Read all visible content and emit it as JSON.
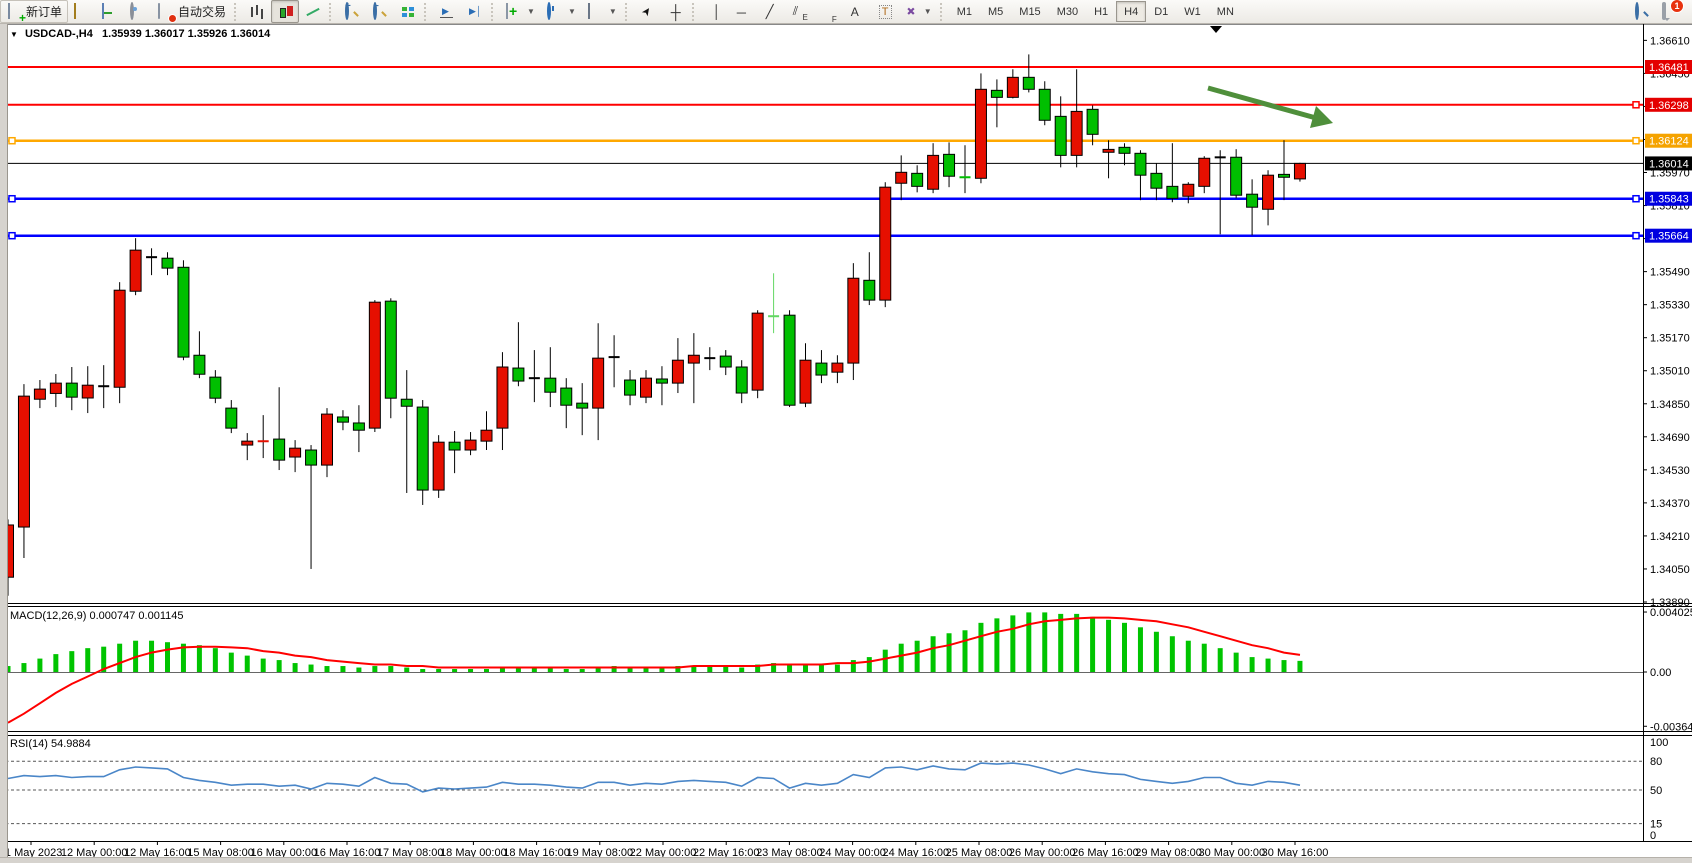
{
  "toolbar": {
    "new_order_label": "新订单",
    "autotrading_label": "自动交易",
    "timeframes": [
      "M1",
      "M5",
      "M15",
      "M30",
      "H1",
      "H4",
      "D1",
      "W1",
      "MN"
    ],
    "active_timeframe": "H4",
    "notification_count": "1",
    "icons": [
      "new-order-icon",
      "gold-icon",
      "charts-window-icon",
      "signals-icon",
      "autotrading-icon",
      "bar-chart-icon",
      "candlestick-icon",
      "line-chart-icon",
      "zoom-in-icon",
      "zoom-out-icon",
      "tile-windows-icon",
      "auto-scroll-icon",
      "chart-shift-icon",
      "add-indicator-icon",
      "periods-clock-icon",
      "templates-icon",
      "cursor-icon",
      "crosshair-icon",
      "vertical-line-icon",
      "horizontal-line-icon",
      "trendline-icon",
      "channel-icon",
      "fibonacci-icon",
      "text-icon",
      "text-label-icon",
      "arrows-icon",
      "search-icon",
      "chat-icon"
    ]
  },
  "chart": {
    "symbol_period": "USDCAD-,H4",
    "ohlc_text": "1.35939 1.36017 1.35926 1.36014",
    "current_price": "1.36014",
    "colors": {
      "candle_up": "#e60f00",
      "candle_down": "#00bf00",
      "candle_doji_lime": "#63d763",
      "candle_doji_black": "#111111",
      "line_red": "#ff0000",
      "line_orange": "#ffa800",
      "line_blue": "#0000ff",
      "price_line_black": "#000000",
      "macd_hist": "#00c400",
      "macd_signal": "#ff0000",
      "rsi_line": "#4a86c8",
      "arrow_green": "#4f8f3b"
    }
  },
  "price_axis": {
    "ticks": [
      "1.36610",
      "1.36450",
      "1.36290",
      "1.36130",
      "1.35970",
      "1.35810",
      "1.35650",
      "1.35490",
      "1.35330",
      "1.35170",
      "1.35010",
      "1.34850",
      "1.34690",
      "1.34530",
      "1.34370",
      "1.34210",
      "1.34050",
      "1.33890"
    ],
    "badges": [
      {
        "text": "1.36481",
        "price": 1.36481,
        "color": "#e40000"
      },
      {
        "text": "1.36298",
        "price": 1.36298,
        "color": "#e40000"
      },
      {
        "text": "1.36124",
        "price": 1.36124,
        "color": "#f5a300"
      },
      {
        "text": "1.36014",
        "price": 1.36014,
        "color": "#000000"
      },
      {
        "text": "1.35843",
        "price": 1.35843,
        "color": "#0000e0"
      },
      {
        "text": "1.35664",
        "price": 1.35664,
        "color": "#0000e0"
      }
    ]
  },
  "hlines": [
    {
      "name": "resistance-1",
      "price": 1.36481,
      "color": "#ff0000",
      "width": 2,
      "left_handle": false,
      "right_handle": false
    },
    {
      "name": "resistance-2",
      "price": 1.36298,
      "color": "#ff0000",
      "width": 2,
      "left_handle": false,
      "right_handle": true
    },
    {
      "name": "pivot-orange",
      "price": 1.36124,
      "color": "#ffa800",
      "width": 2.5,
      "left_handle": true,
      "right_handle": true
    },
    {
      "name": "current-price",
      "price": 1.36014,
      "color": "#000000",
      "width": 1,
      "left_handle": false,
      "right_handle": false
    },
    {
      "name": "support-1",
      "price": 1.35843,
      "color": "#0000ff",
      "width": 2.5,
      "left_handle": true,
      "right_handle": true
    },
    {
      "name": "support-2",
      "price": 1.35664,
      "color": "#0000ff",
      "width": 2.5,
      "left_handle": true,
      "right_handle": true
    }
  ],
  "time_axis": [
    "11 May 2023",
    "12 May 00:00",
    "12 May 16:00",
    "15 May 08:00",
    "16 May 00:00",
    "16 May 16:00",
    "17 May 08:00",
    "18 May 00:00",
    "18 May 16:00",
    "19 May 08:00",
    "22 May 00:00",
    "22 May 16:00",
    "23 May 08:00",
    "24 May 00:00",
    "24 May 16:00",
    "25 May 08:00",
    "26 May 00:00",
    "26 May 16:00",
    "29 May 08:00",
    "30 May 00:00",
    "30 May 16:00"
  ],
  "macd": {
    "label": "MACD(12,26,9)",
    "values_text": "0.000747 0.001145",
    "axis_max": "0.004025",
    "axis_zero": "0.00",
    "axis_min": "-0.003642"
  },
  "rsi": {
    "label": "RSI(14)",
    "value_text": "54.9884",
    "levels": [
      "100",
      "80",
      "50",
      "15",
      "0"
    ]
  },
  "chart_data": {
    "type": "candlestick",
    "title": "USDCAD- H4",
    "note": "colors: r=up(red, CN convention), g=down(green), k=black doji, l=lime doji; candle=[open,high,low,close,color]",
    "candles": [
      [
        1.3401,
        1.3429,
        1.3392,
        1.34263,
        "r"
      ],
      [
        1.34253,
        1.34945,
        1.34103,
        1.34887,
        "r"
      ],
      [
        1.34872,
        1.34965,
        1.34829,
        1.34921,
        "r"
      ],
      [
        1.349,
        1.34994,
        1.34834,
        1.3495,
        "r"
      ],
      [
        1.3495,
        1.35028,
        1.34819,
        1.34882,
        "g"
      ],
      [
        1.34878,
        1.35032,
        1.34805,
        1.3494,
        "r"
      ],
      [
        1.34933,
        1.35037,
        1.34829,
        1.34937,
        "k"
      ],
      [
        1.3493,
        1.35439,
        1.34853,
        1.354,
        "r"
      ],
      [
        1.35395,
        1.35652,
        1.35376,
        1.35594,
        "r"
      ],
      [
        1.35558,
        1.35603,
        1.35473,
        1.35562,
        "k"
      ],
      [
        1.35555,
        1.35584,
        1.35473,
        1.35507,
        "g"
      ],
      [
        1.35511,
        1.35545,
        1.35061,
        1.35076,
        "g"
      ],
      [
        1.35085,
        1.35201,
        1.34974,
        1.34993,
        "g"
      ],
      [
        1.34979,
        1.35013,
        1.34853,
        1.34877,
        "g"
      ],
      [
        1.34829,
        1.34868,
        1.34708,
        1.34732,
        "g"
      ],
      [
        1.3465,
        1.34708,
        1.34577,
        1.34669,
        "r"
      ],
      [
        1.34665,
        1.34795,
        1.34587,
        1.34672,
        "r"
      ],
      [
        1.34679,
        1.3493,
        1.34529,
        1.34577,
        "g"
      ],
      [
        1.34592,
        1.34674,
        1.34519,
        1.34635,
        "r"
      ],
      [
        1.34626,
        1.3465,
        1.3405,
        1.34553,
        "g"
      ],
      [
        1.34553,
        1.34829,
        1.34495,
        1.348,
        "r"
      ],
      [
        1.34786,
        1.34819,
        1.34722,
        1.34761,
        "g"
      ],
      [
        1.34757,
        1.34843,
        1.34616,
        1.34722,
        "g"
      ],
      [
        1.34732,
        1.35352,
        1.34713,
        1.35342,
        "r"
      ],
      [
        1.35347,
        1.35361,
        1.3478,
        1.34877,
        "g"
      ],
      [
        1.34872,
        1.35013,
        1.34418,
        1.34838,
        "g"
      ],
      [
        1.34834,
        1.34868,
        1.3436,
        1.34432,
        "g"
      ],
      [
        1.34432,
        1.34698,
        1.34394,
        1.34664,
        "r"
      ],
      [
        1.34664,
        1.34718,
        1.34514,
        1.34626,
        "g"
      ],
      [
        1.34626,
        1.34713,
        1.34601,
        1.34674,
        "r"
      ],
      [
        1.34669,
        1.34814,
        1.34626,
        1.34722,
        "r"
      ],
      [
        1.34732,
        1.351,
        1.34626,
        1.35028,
        "r"
      ],
      [
        1.35023,
        1.35245,
        1.34935,
        1.3496,
        "g"
      ],
      [
        1.34972,
        1.3511,
        1.34858,
        1.34976,
        "k"
      ],
      [
        1.34974,
        1.35124,
        1.34834,
        1.34906,
        "g"
      ],
      [
        1.34926,
        1.34974,
        1.34732,
        1.34843,
        "g"
      ],
      [
        1.34853,
        1.3495,
        1.34698,
        1.34829,
        "g"
      ],
      [
        1.34829,
        1.3524,
        1.34674,
        1.35071,
        "r"
      ],
      [
        1.35074,
        1.35182,
        1.3493,
        1.35078,
        "k"
      ],
      [
        1.34965,
        1.35013,
        1.34843,
        1.34892,
        "g"
      ],
      [
        1.34882,
        1.35013,
        1.34853,
        1.34974,
        "r"
      ],
      [
        1.3497,
        1.35032,
        1.34843,
        1.3495,
        "g"
      ],
      [
        1.3495,
        1.35168,
        1.34902,
        1.35061,
        "r"
      ],
      [
        1.35047,
        1.35192,
        1.34853,
        1.35085,
        "r"
      ],
      [
        1.35069,
        1.35124,
        1.35013,
        1.35073,
        "k"
      ],
      [
        1.35081,
        1.3511,
        1.34989,
        1.35028,
        "g"
      ],
      [
        1.35028,
        1.35061,
        1.34853,
        1.34902,
        "g"
      ],
      [
        1.34916,
        1.35303,
        1.34877,
        1.35289,
        "r"
      ],
      [
        1.35272,
        1.35482,
        1.35192,
        1.35276,
        "l"
      ],
      [
        1.35279,
        1.35303,
        1.34834,
        1.34843,
        "g"
      ],
      [
        1.34853,
        1.35143,
        1.34834,
        1.35061,
        "r"
      ],
      [
        1.35047,
        1.3511,
        1.3495,
        1.34989,
        "g"
      ],
      [
        1.35003,
        1.35085,
        1.3495,
        1.35047,
        "r"
      ],
      [
        1.35047,
        1.35531,
        1.34965,
        1.35458,
        "r"
      ],
      [
        1.35448,
        1.35584,
        1.35328,
        1.35352,
        "g"
      ],
      [
        1.35352,
        1.35923,
        1.35318,
        1.35899,
        "r"
      ],
      [
        1.35918,
        1.36053,
        1.35836,
        1.35971,
        "r"
      ],
      [
        1.35966,
        1.36005,
        1.35874,
        1.35903,
        "g"
      ],
      [
        1.35889,
        1.36112,
        1.3587,
        1.36053,
        "r"
      ],
      [
        1.36058,
        1.36116,
        1.35899,
        1.35952,
        "g"
      ],
      [
        1.35952,
        1.36102,
        1.3587,
        1.35942,
        "g"
      ],
      [
        1.35942,
        1.3645,
        1.35918,
        1.36373,
        "r"
      ],
      [
        1.36368,
        1.36421,
        1.36189,
        1.36334,
        "g"
      ],
      [
        1.36334,
        1.3647,
        1.36329,
        1.36431,
        "r"
      ],
      [
        1.36431,
        1.36542,
        1.36358,
        1.36373,
        "g"
      ],
      [
        1.36373,
        1.36412,
        1.36199,
        1.36223,
        "g"
      ],
      [
        1.36242,
        1.36339,
        1.35995,
        1.36053,
        "g"
      ],
      [
        1.36053,
        1.3647,
        1.35995,
        1.36266,
        "r"
      ],
      [
        1.36276,
        1.36295,
        1.36102,
        1.36155,
        "g"
      ],
      [
        1.36068,
        1.36126,
        1.35942,
        1.36082,
        "r"
      ],
      [
        1.36092,
        1.36112,
        1.36005,
        1.36063,
        "g"
      ],
      [
        1.36063,
        1.36078,
        1.35836,
        1.35957,
        "g"
      ],
      [
        1.35966,
        1.36015,
        1.35836,
        1.35894,
        "g"
      ],
      [
        1.35903,
        1.36112,
        1.35826,
        1.35845,
        "g"
      ],
      [
        1.35855,
        1.35923,
        1.35821,
        1.35913,
        "r"
      ],
      [
        1.35903,
        1.36049,
        1.3587,
        1.36039,
        "r"
      ],
      [
        1.36041,
        1.36078,
        1.35671,
        1.36046,
        "k"
      ],
      [
        1.36044,
        1.36083,
        1.35845,
        1.3586,
        "g"
      ],
      [
        1.35865,
        1.35937,
        1.35666,
        1.35802,
        "g"
      ],
      [
        1.35792,
        1.35981,
        1.35714,
        1.35957,
        "r"
      ],
      [
        1.35961,
        1.36126,
        1.35836,
        1.35947,
        "g"
      ],
      [
        1.35939,
        1.36017,
        1.35926,
        1.36014,
        "r"
      ]
    ],
    "macd_histogram": [
      0.0004,
      0.0006,
      0.0009,
      0.0012,
      0.0014,
      0.0016,
      0.0017,
      0.0019,
      0.0021,
      0.0021,
      0.002,
      0.0019,
      0.0018,
      0.0016,
      0.0013,
      0.0011,
      0.0009,
      0.0008,
      0.0006,
      0.0005,
      0.0004,
      0.0004,
      0.0003,
      0.0004,
      0.0004,
      0.0003,
      0.0002,
      0.0002,
      0.0002,
      0.0002,
      0.0002,
      0.0003,
      0.0003,
      0.0003,
      0.0003,
      0.0002,
      0.0002,
      0.0003,
      0.0004,
      0.0003,
      0.0003,
      0.0003,
      0.0004,
      0.0004,
      0.0004,
      0.0004,
      0.0003,
      0.0005,
      0.0006,
      0.0005,
      0.0005,
      0.0005,
      0.0005,
      0.0008,
      0.001,
      0.0015,
      0.0019,
      0.0021,
      0.0024,
      0.0026,
      0.0028,
      0.0033,
      0.0036,
      0.0038,
      0.004,
      0.004,
      0.0039,
      0.0039,
      0.0037,
      0.0035,
      0.0033,
      0.003,
      0.0027,
      0.0024,
      0.0021,
      0.0019,
      0.0016,
      0.0013,
      0.001,
      0.0009,
      0.0008,
      0.000747
    ],
    "macd_signal": [
      -0.0034,
      -0.0028,
      -0.0021,
      -0.0014,
      -0.0008,
      -0.0003,
      0.0002,
      0.0006,
      0.001,
      0.0013,
      0.0015,
      0.00165,
      0.0017,
      0.0017,
      0.00165,
      0.0016,
      0.0014,
      0.0013,
      0.0011,
      0.001,
      0.0008,
      0.0007,
      0.0006,
      0.0005,
      0.0005,
      0.0004,
      0.0004,
      0.0003,
      0.0003,
      0.0003,
      0.0003,
      0.0003,
      0.0003,
      0.0003,
      0.0003,
      0.0003,
      0.0003,
      0.0003,
      0.0003,
      0.0003,
      0.0003,
      0.0003,
      0.0003,
      0.0004,
      0.0004,
      0.0004,
      0.0004,
      0.0004,
      0.0005,
      0.0005,
      0.0005,
      0.0005,
      0.0006,
      0.0006,
      0.0007,
      0.0009,
      0.0011,
      0.0013,
      0.0016,
      0.0018,
      0.0021,
      0.0024,
      0.0027,
      0.0029,
      0.0032,
      0.0034,
      0.0035,
      0.0036,
      0.00365,
      0.00365,
      0.0036,
      0.0035,
      0.0034,
      0.0032,
      0.003,
      0.0027,
      0.0024,
      0.0021,
      0.0018,
      0.0016,
      0.0013,
      0.001145
    ],
    "rsi_values": [
      62,
      65,
      64,
      65,
      63,
      64,
      64,
      71,
      74,
      73,
      72,
      63,
      60,
      58,
      55,
      56,
      56,
      54,
      55,
      51,
      57,
      56,
      54,
      63,
      57,
      56,
      48,
      52,
      51,
      52,
      53,
      58,
      56,
      56,
      55,
      53,
      52,
      58,
      58,
      55,
      57,
      56,
      59,
      60,
      59,
      58,
      54,
      63,
      62,
      52,
      57,
      55,
      57,
      66,
      63,
      73,
      74,
      71,
      75,
      72,
      71,
      78,
      77,
      78,
      76,
      72,
      67,
      72,
      69,
      67,
      66,
      61,
      59,
      57,
      59,
      63,
      63,
      57,
      55,
      59,
      58,
      55
    ],
    "hlines": [
      1.36481,
      1.36298,
      1.36124,
      1.36014,
      1.35843,
      1.35664
    ],
    "rsi_level_lines": [
      80,
      50,
      15
    ]
  }
}
